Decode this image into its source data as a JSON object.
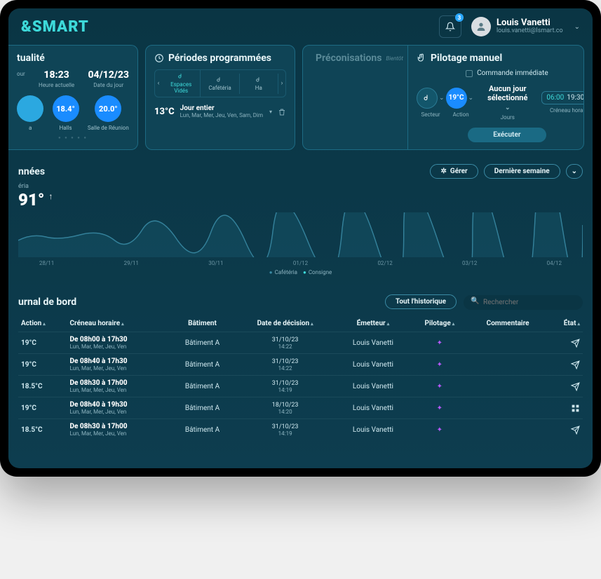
{
  "brand": "&SMART",
  "header": {
    "notif_count": "3",
    "user_name": "Louis Vanetti",
    "user_email": "louis.vanetti@lsmart.co"
  },
  "actualite": {
    "title": "tualité",
    "c1": {
      "val": "",
      "lab": "our"
    },
    "c2": {
      "val": "18:23",
      "lab": "Heure actuelle"
    },
    "c3": {
      "val": "04/12/23",
      "lab": "Date du jour"
    },
    "b1": {
      "val": "",
      "lab": "a"
    },
    "b2": {
      "val": "18.4°",
      "lab": "Halls"
    },
    "b3": {
      "val": "20.0°",
      "lab": "Salle de Réunion"
    }
  },
  "periodes": {
    "title": "Périodes programmées",
    "tabs": [
      "Espaces Vidés",
      "Cafétéria",
      "Ha"
    ],
    "temp": "13°C",
    "line1": "Jour entier",
    "line2": "Lun, Mar, Mer, Jeu, Ven, Sam, Dim"
  },
  "pilotage": {
    "left_title": "Préconisations",
    "left_badge": "Bientôt",
    "right_title": "Pilotage manuel",
    "cmd": "Commande immédiate",
    "action_temp": "19°C",
    "secteur_lab": "Secteur",
    "action_lab": "Action",
    "jours_title": "Aucun jour sélectionné",
    "jours_lab": "Jours",
    "time_from": "06:00",
    "time_to": "19:30",
    "time_lab": "Créneau horaire",
    "exec": "Exécuter"
  },
  "donnees": {
    "title": "nnées",
    "gerer": "Gérer",
    "periode": "Dernière semaine",
    "metric_lab": "éria",
    "metric_val": "91°",
    "xlabels": [
      "28/11",
      "29/11",
      "30/11",
      "01/12",
      "02/12",
      "03/12",
      "04/12"
    ],
    "leg1": "Cafétéria",
    "leg2": "Consigne"
  },
  "journal": {
    "title": "urnal de bord",
    "hist": "Tout l'historique",
    "search_ph": "Rechercher",
    "cols": [
      "Action",
      "Créneau horaire",
      "Bâtiment",
      "Date de décision",
      "Émetteur",
      "Pilotage",
      "Commentaire",
      "État"
    ],
    "rows": [
      {
        "t": "19°C",
        "slot": "De 08h00 à 17h30",
        "days": "Lun, Mar, Mer, Jeu, Ven",
        "b": "Bâtiment A",
        "d": "31/10/23",
        "h": "14:22",
        "e": "Louis Vanetti",
        "ic": "send"
      },
      {
        "t": "19°C",
        "slot": "De 08h40 à 17h30",
        "days": "Lun, Mar, Mer, Jeu, Ven",
        "b": "Bâtiment A",
        "d": "31/10/23",
        "h": "14:22",
        "e": "Louis Vanetti",
        "ic": "send"
      },
      {
        "t": "18.5°C",
        "slot": "De 08h30 à 17h00",
        "days": "Lun, Mar, Mer, Jeu, Ven",
        "b": "Bâtiment A",
        "d": "31/10/23",
        "h": "14:19",
        "e": "Louis Vanetti",
        "ic": "send"
      },
      {
        "t": "19°C",
        "slot": "De 08h40 à 19h30",
        "days": "Lun, Mar, Mer, Jeu, Ven",
        "b": "Bâtiment A",
        "d": "18/10/23",
        "h": "14:20",
        "e": "Louis Vanetti",
        "ic": "grid"
      },
      {
        "t": "18.5°C",
        "slot": "De 08h30 à 17h00",
        "days": "Lun, Mar, Mer, Jeu, Ven",
        "b": "Bâtiment A",
        "d": "31/10/23",
        "h": "14:19",
        "e": "Louis Vanetti",
        "ic": "send"
      }
    ]
  },
  "colors": {
    "accent": "#3dd9d9",
    "blue": "#1a8cff",
    "bg": "#0d3d4f",
    "border": "#1d6b84"
  }
}
